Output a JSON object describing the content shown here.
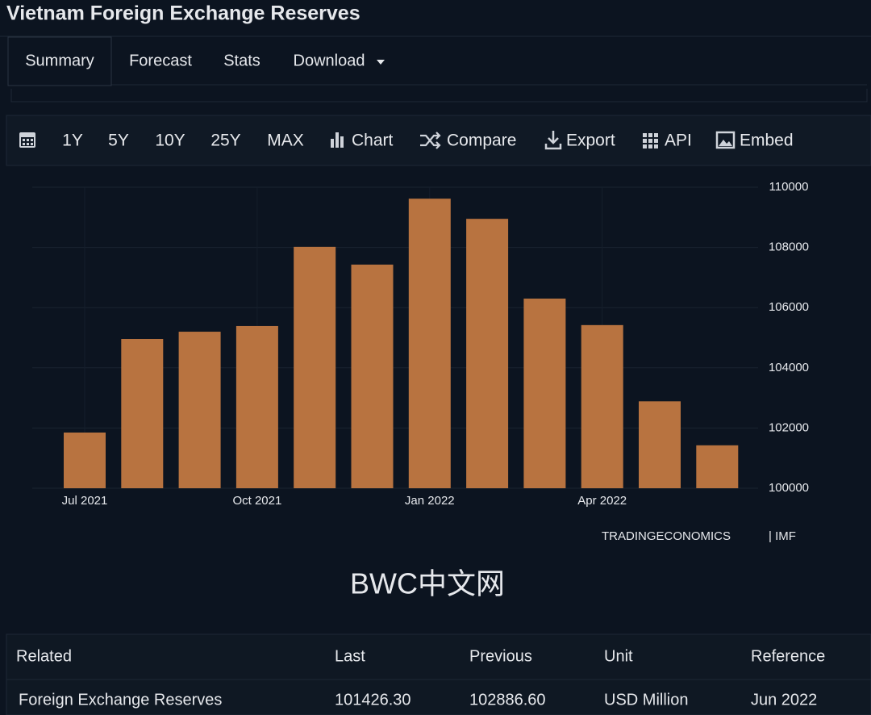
{
  "title": "Vietnam Foreign Exchange Reserves",
  "tabs": [
    "Summary",
    "Forecast",
    "Stats",
    "Download"
  ],
  "toolbar": [
    "1Y",
    "5Y",
    "10Y",
    "25Y",
    "MAX",
    "Chart",
    "Compare",
    "Export",
    "API",
    "Embed"
  ],
  "chart_data": {
    "type": "bar",
    "categories": [
      "Jul 2021",
      null,
      null,
      "Oct 2021",
      null,
      null,
      "Jan 2022",
      null,
      null,
      "Apr 2022",
      null,
      null
    ],
    "values": [
      101850,
      104960,
      105200,
      105390,
      108020,
      107430,
      109620,
      108950,
      106300,
      105420,
      102887,
      101426
    ],
    "color": "#b87340",
    "ylim": [
      100000,
      110000
    ],
    "yticks": [
      100000,
      102000,
      104000,
      106000,
      108000,
      110000
    ],
    "grid": true
  },
  "source": [
    "TRADINGECONOMICS",
    "| IMF"
  ],
  "watermark": "BWC中文网",
  "table": {
    "header": [
      "Related",
      "Last",
      "Previous",
      "Unit",
      "Reference"
    ],
    "rows": [
      [
        "Foreign Exchange Reserves",
        "101426.30",
        "102886.60",
        "USD Million",
        "Jun 2022"
      ]
    ]
  }
}
